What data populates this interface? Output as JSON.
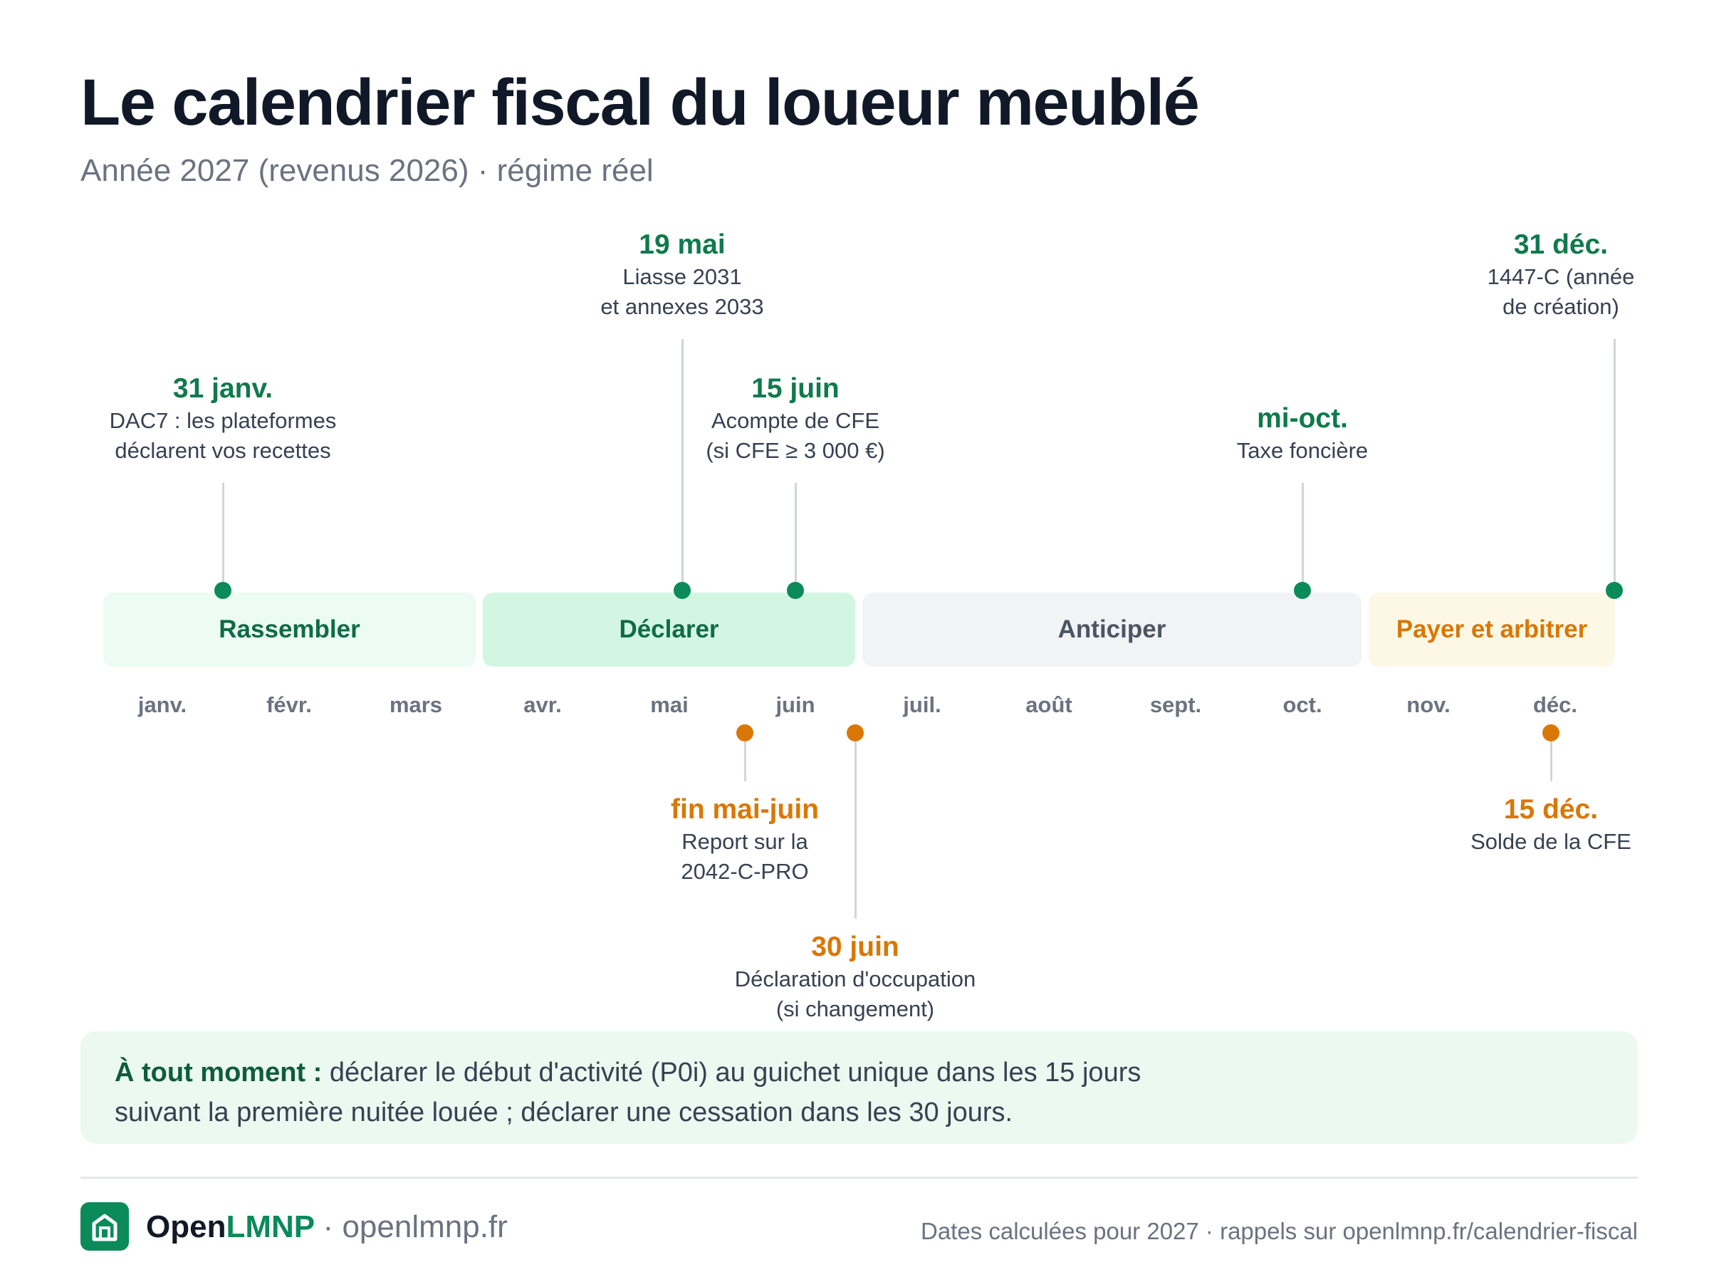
{
  "header": {
    "title": "Le calendrier fiscal du loueur meublé",
    "subtitle": "Année 2027 (revenus 2026) · régime réel"
  },
  "phases": [
    {
      "label": "Rassembler",
      "months": "janv.–mars",
      "color": "#0f6b46"
    },
    {
      "label": "Déclarer",
      "months": "avr.–juin",
      "color": "#0f6b46"
    },
    {
      "label": "Anticiper",
      "months": "juil.–oct.",
      "color": "#4b5563"
    },
    {
      "label": "Payer et arbitrer",
      "months": "nov.–déc.",
      "color": "#d97706"
    }
  ],
  "months": [
    "janv.",
    "févr.",
    "mars",
    "avr.",
    "mai",
    "juin",
    "juil.",
    "août",
    "sept.",
    "oct.",
    "nov.",
    "déc."
  ],
  "events_above": [
    {
      "date": "31 janv.",
      "lines": [
        "DAC7 : les plateformes",
        "déclarent vos recettes"
      ]
    },
    {
      "date": "19 mai",
      "lines": [
        "Liasse 2031",
        "et annexes 2033"
      ]
    },
    {
      "date": "15 juin",
      "lines": [
        "Acompte de CFE",
        "(si CFE ≥ 3 000 €)"
      ]
    },
    {
      "date": "mi-oct.",
      "lines": [
        "Taxe foncière"
      ]
    },
    {
      "date": "31 déc.",
      "lines": [
        "1447-C (année",
        "de création)"
      ]
    }
  ],
  "events_below": [
    {
      "date": "fin mai-juin",
      "lines": [
        "Report sur la",
        "2042-C-PRO"
      ]
    },
    {
      "date": "30 juin",
      "lines": [
        "Déclaration d'occupation",
        "(si changement)"
      ]
    },
    {
      "date": "15 déc.",
      "lines": [
        "Solde de la CFE"
      ]
    }
  ],
  "colors": {
    "green": "#0b8a5a",
    "orange": "#d97706"
  },
  "note": {
    "strong": "À tout moment :",
    "line1": " déclarer le début d'activité (P0i) au guichet unique dans les 15 jours",
    "line2": "suivant la première nuitée louée ; déclarer une cessation dans les 30 jours."
  },
  "footer": {
    "brand_open": "Open",
    "brand_lmnp": "LMNP",
    "separator": "·",
    "domain": "openlmnp.fr",
    "footnote": "Dates calculées pour 2027 · rappels sur openlmnp.fr/calendrier-fiscal",
    "logo_icon": "house-icon"
  }
}
